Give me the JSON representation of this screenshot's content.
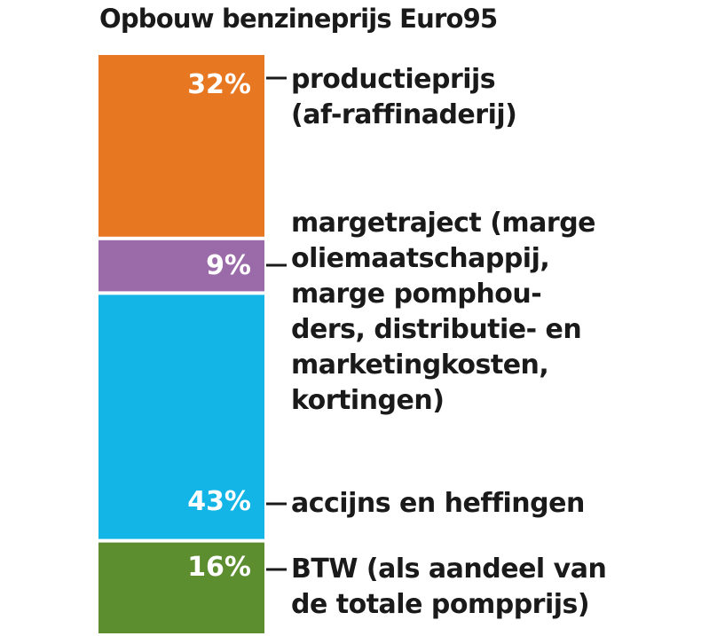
{
  "chart_data": {
    "type": "bar",
    "stacked": true,
    "title": "Opbouw benzineprijs Euro95",
    "xlabel": "",
    "ylabel": "",
    "ylim": [
      0,
      100
    ],
    "grid": false,
    "segments": [
      {
        "value": 32,
        "value_label": "32%",
        "color": "#e87722",
        "label": "productieprijs\n(af-raffinaderij)"
      },
      {
        "value": 9,
        "value_label": "9%",
        "color": "#9b6aa8",
        "label": "margetraject (marge\noliemaatschappij,\nmarge pomphou-\nders, distributie-  en\nmarketingkosten,\nkortingen)"
      },
      {
        "value": 43,
        "value_label": "43%",
        "color": "#12b5e5",
        "label": "accijns en heffingen"
      },
      {
        "value": 16,
        "value_label": "16%",
        "color": "#5c8d2f",
        "label": "BTW (als aandeel van\nde totale pompprijs)"
      }
    ]
  }
}
